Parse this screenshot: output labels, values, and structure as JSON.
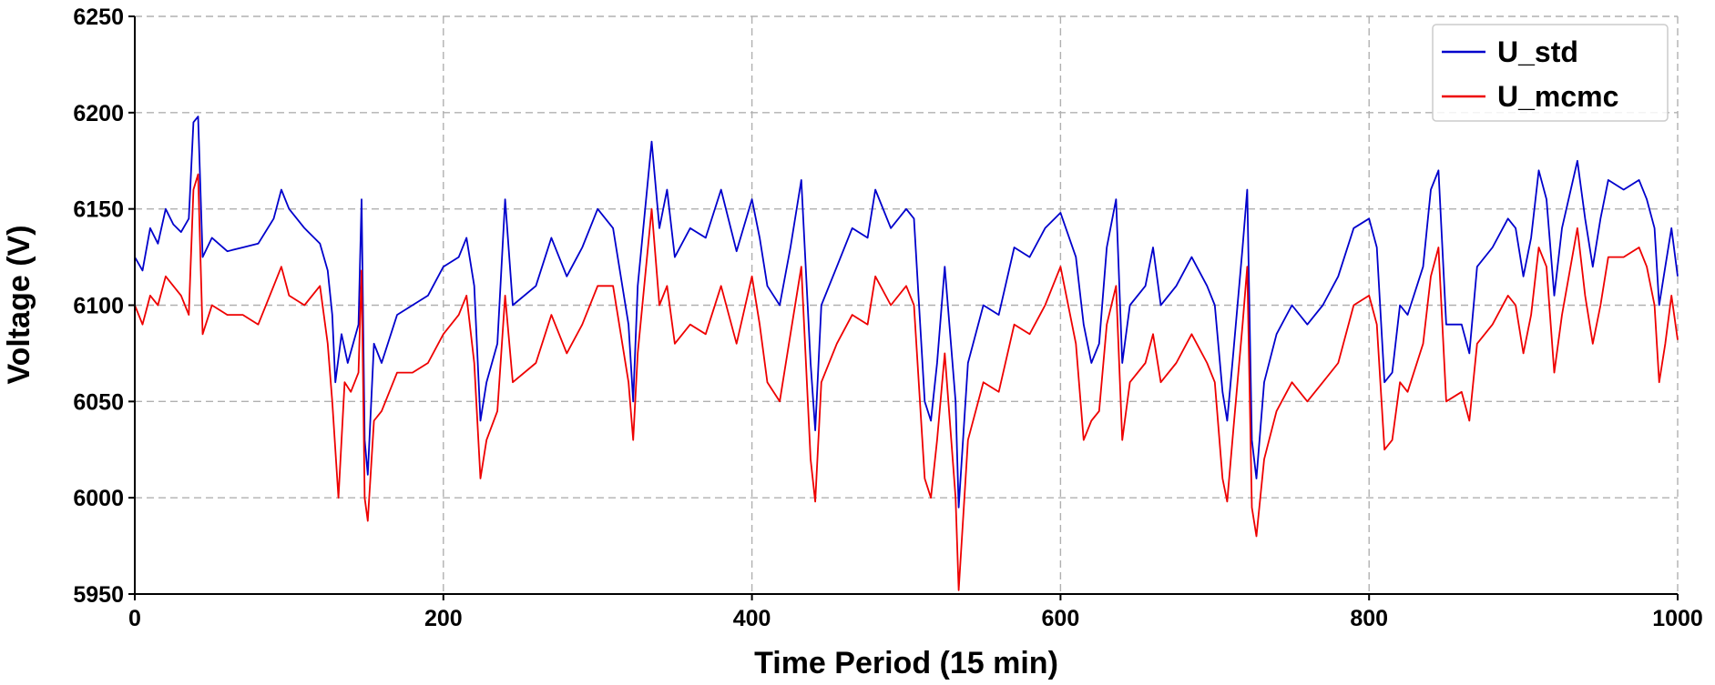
{
  "chart_data": {
    "type": "line",
    "xlabel": "Time Period (15 min)",
    "ylabel": "Voltage (V)",
    "xlim": [
      0,
      1000
    ],
    "ylim": [
      5950,
      6250
    ],
    "x_ticks": [
      0,
      200,
      400,
      600,
      800,
      1000
    ],
    "y_ticks": [
      5950,
      6000,
      6050,
      6100,
      6150,
      6200,
      6250
    ],
    "grid": true,
    "legend_position": "top-right",
    "series": [
      {
        "name": "U_std",
        "color": "#0000cc",
        "points": [
          [
            0,
            6125
          ],
          [
            5,
            6118
          ],
          [
            10,
            6140
          ],
          [
            15,
            6132
          ],
          [
            20,
            6150
          ],
          [
            25,
            6142
          ],
          [
            30,
            6138
          ],
          [
            35,
            6145
          ],
          [
            38,
            6195
          ],
          [
            41,
            6198
          ],
          [
            44,
            6125
          ],
          [
            50,
            6135
          ],
          [
            60,
            6128
          ],
          [
            70,
            6130
          ],
          [
            80,
            6132
          ],
          [
            90,
            6145
          ],
          [
            95,
            6160
          ],
          [
            100,
            6150
          ],
          [
            110,
            6140
          ],
          [
            120,
            6132
          ],
          [
            125,
            6118
          ],
          [
            128,
            6095
          ],
          [
            130,
            6060
          ],
          [
            134,
            6085
          ],
          [
            138,
            6070
          ],
          [
            145,
            6090
          ],
          [
            147,
            6155
          ],
          [
            149,
            6030
          ],
          [
            151,
            6012
          ],
          [
            155,
            6080
          ],
          [
            160,
            6070
          ],
          [
            170,
            6095
          ],
          [
            180,
            6100
          ],
          [
            190,
            6105
          ],
          [
            200,
            6120
          ],
          [
            210,
            6125
          ],
          [
            215,
            6135
          ],
          [
            220,
            6110
          ],
          [
            224,
            6040
          ],
          [
            228,
            6060
          ],
          [
            235,
            6080
          ],
          [
            240,
            6155
          ],
          [
            245,
            6100
          ],
          [
            260,
            6110
          ],
          [
            270,
            6135
          ],
          [
            280,
            6115
          ],
          [
            290,
            6130
          ],
          [
            300,
            6150
          ],
          [
            310,
            6140
          ],
          [
            320,
            6090
          ],
          [
            323,
            6050
          ],
          [
            326,
            6110
          ],
          [
            335,
            6185
          ],
          [
            340,
            6140
          ],
          [
            345,
            6160
          ],
          [
            350,
            6125
          ],
          [
            360,
            6140
          ],
          [
            370,
            6135
          ],
          [
            380,
            6160
          ],
          [
            390,
            6128
          ],
          [
            400,
            6155
          ],
          [
            405,
            6135
          ],
          [
            410,
            6110
          ],
          [
            418,
            6100
          ],
          [
            425,
            6130
          ],
          [
            432,
            6165
          ],
          [
            438,
            6070
          ],
          [
            441,
            6035
          ],
          [
            445,
            6100
          ],
          [
            455,
            6120
          ],
          [
            465,
            6140
          ],
          [
            475,
            6135
          ],
          [
            480,
            6160
          ],
          [
            490,
            6140
          ],
          [
            500,
            6150
          ],
          [
            505,
            6145
          ],
          [
            512,
            6050
          ],
          [
            516,
            6040
          ],
          [
            520,
            6070
          ],
          [
            525,
            6120
          ],
          [
            532,
            6050
          ],
          [
            534,
            5995
          ],
          [
            540,
            6070
          ],
          [
            550,
            6100
          ],
          [
            560,
            6095
          ],
          [
            570,
            6130
          ],
          [
            580,
            6125
          ],
          [
            590,
            6140
          ],
          [
            600,
            6148
          ],
          [
            610,
            6125
          ],
          [
            615,
            6090
          ],
          [
            620,
            6070
          ],
          [
            625,
            6080
          ],
          [
            630,
            6130
          ],
          [
            636,
            6155
          ],
          [
            640,
            6070
          ],
          [
            645,
            6100
          ],
          [
            655,
            6110
          ],
          [
            660,
            6130
          ],
          [
            665,
            6100
          ],
          [
            675,
            6110
          ],
          [
            685,
            6125
          ],
          [
            695,
            6110
          ],
          [
            700,
            6100
          ],
          [
            705,
            6055
          ],
          [
            708,
            6040
          ],
          [
            712,
            6075
          ],
          [
            718,
            6130
          ],
          [
            721,
            6160
          ],
          [
            724,
            6030
          ],
          [
            727,
            6010
          ],
          [
            732,
            6060
          ],
          [
            740,
            6085
          ],
          [
            750,
            6100
          ],
          [
            760,
            6090
          ],
          [
            770,
            6100
          ],
          [
            780,
            6115
          ],
          [
            790,
            6140
          ],
          [
            800,
            6145
          ],
          [
            805,
            6130
          ],
          [
            810,
            6060
          ],
          [
            815,
            6065
          ],
          [
            820,
            6100
          ],
          [
            825,
            6095
          ],
          [
            835,
            6120
          ],
          [
            840,
            6160
          ],
          [
            845,
            6170
          ],
          [
            850,
            6090
          ],
          [
            860,
            6090
          ],
          [
            865,
            6075
          ],
          [
            870,
            6120
          ],
          [
            880,
            6130
          ],
          [
            890,
            6145
          ],
          [
            895,
            6140
          ],
          [
            900,
            6115
          ],
          [
            905,
            6135
          ],
          [
            910,
            6170
          ],
          [
            915,
            6155
          ],
          [
            920,
            6105
          ],
          [
            925,
            6140
          ],
          [
            935,
            6175
          ],
          [
            940,
            6145
          ],
          [
            945,
            6120
          ],
          [
            950,
            6145
          ],
          [
            955,
            6165
          ],
          [
            965,
            6160
          ],
          [
            975,
            6165
          ],
          [
            980,
            6155
          ],
          [
            985,
            6140
          ],
          [
            988,
            6100
          ],
          [
            992,
            6120
          ],
          [
            996,
            6140
          ],
          [
            1000,
            6115
          ]
        ]
      },
      {
        "name": "U_mcmc",
        "color": "#ee0000",
        "points": [
          [
            0,
            6100
          ],
          [
            5,
            6090
          ],
          [
            10,
            6105
          ],
          [
            15,
            6100
          ],
          [
            20,
            6115
          ],
          [
            25,
            6110
          ],
          [
            30,
            6105
          ],
          [
            35,
            6095
          ],
          [
            38,
            6160
          ],
          [
            41,
            6168
          ],
          [
            44,
            6085
          ],
          [
            50,
            6100
          ],
          [
            60,
            6095
          ],
          [
            70,
            6095
          ],
          [
            80,
            6090
          ],
          [
            90,
            6110
          ],
          [
            95,
            6120
          ],
          [
            100,
            6105
          ],
          [
            110,
            6100
          ],
          [
            120,
            6110
          ],
          [
            125,
            6080
          ],
          [
            128,
            6050
          ],
          [
            130,
            6025
          ],
          [
            132,
            6000
          ],
          [
            136,
            6060
          ],
          [
            140,
            6055
          ],
          [
            145,
            6065
          ],
          [
            147,
            6118
          ],
          [
            149,
            6000
          ],
          [
            151,
            5988
          ],
          [
            155,
            6040
          ],
          [
            160,
            6045
          ],
          [
            170,
            6065
          ],
          [
            180,
            6065
          ],
          [
            190,
            6070
          ],
          [
            200,
            6085
          ],
          [
            210,
            6095
          ],
          [
            215,
            6105
          ],
          [
            220,
            6070
          ],
          [
            224,
            6010
          ],
          [
            228,
            6030
          ],
          [
            235,
            6045
          ],
          [
            240,
            6105
          ],
          [
            245,
            6060
          ],
          [
            260,
            6070
          ],
          [
            270,
            6095
          ],
          [
            280,
            6075
          ],
          [
            290,
            6090
          ],
          [
            300,
            6110
          ],
          [
            310,
            6110
          ],
          [
            320,
            6060
          ],
          [
            323,
            6030
          ],
          [
            326,
            6075
          ],
          [
            335,
            6150
          ],
          [
            340,
            6100
          ],
          [
            345,
            6110
          ],
          [
            350,
            6080
          ],
          [
            360,
            6090
          ],
          [
            370,
            6085
          ],
          [
            380,
            6110
          ],
          [
            390,
            6080
          ],
          [
            400,
            6115
          ],
          [
            405,
            6090
          ],
          [
            410,
            6060
          ],
          [
            418,
            6050
          ],
          [
            425,
            6085
          ],
          [
            432,
            6120
          ],
          [
            438,
            6020
          ],
          [
            441,
            5998
          ],
          [
            445,
            6060
          ],
          [
            455,
            6080
          ],
          [
            465,
            6095
          ],
          [
            475,
            6090
          ],
          [
            480,
            6115
          ],
          [
            490,
            6100
          ],
          [
            500,
            6110
          ],
          [
            505,
            6100
          ],
          [
            512,
            6010
          ],
          [
            516,
            6000
          ],
          [
            520,
            6030
          ],
          [
            525,
            6075
          ],
          [
            532,
            6000
          ],
          [
            534,
            5952
          ],
          [
            540,
            6030
          ],
          [
            550,
            6060
          ],
          [
            560,
            6055
          ],
          [
            570,
            6090
          ],
          [
            580,
            6085
          ],
          [
            590,
            6100
          ],
          [
            600,
            6120
          ],
          [
            610,
            6080
          ],
          [
            615,
            6030
          ],
          [
            620,
            6040
          ],
          [
            625,
            6045
          ],
          [
            630,
            6090
          ],
          [
            636,
            6110
          ],
          [
            640,
            6030
          ],
          [
            645,
            6060
          ],
          [
            655,
            6070
          ],
          [
            660,
            6085
          ],
          [
            665,
            6060
          ],
          [
            675,
            6070
          ],
          [
            685,
            6085
          ],
          [
            695,
            6070
          ],
          [
            700,
            6060
          ],
          [
            705,
            6010
          ],
          [
            708,
            5998
          ],
          [
            712,
            6035
          ],
          [
            718,
            6090
          ],
          [
            721,
            6120
          ],
          [
            724,
            5995
          ],
          [
            727,
            5980
          ],
          [
            732,
            6020
          ],
          [
            740,
            6045
          ],
          [
            750,
            6060
          ],
          [
            760,
            6050
          ],
          [
            770,
            6060
          ],
          [
            780,
            6070
          ],
          [
            790,
            6100
          ],
          [
            800,
            6105
          ],
          [
            805,
            6090
          ],
          [
            810,
            6025
          ],
          [
            815,
            6030
          ],
          [
            820,
            6060
          ],
          [
            825,
            6055
          ],
          [
            835,
            6080
          ],
          [
            840,
            6115
          ],
          [
            845,
            6130
          ],
          [
            850,
            6050
          ],
          [
            860,
            6055
          ],
          [
            865,
            6040
          ],
          [
            870,
            6080
          ],
          [
            880,
            6090
          ],
          [
            890,
            6105
          ],
          [
            895,
            6100
          ],
          [
            900,
            6075
          ],
          [
            905,
            6095
          ],
          [
            910,
            6130
          ],
          [
            915,
            6120
          ],
          [
            920,
            6065
          ],
          [
            925,
            6095
          ],
          [
            935,
            6140
          ],
          [
            940,
            6105
          ],
          [
            945,
            6080
          ],
          [
            950,
            6100
          ],
          [
            955,
            6125
          ],
          [
            965,
            6125
          ],
          [
            975,
            6130
          ],
          [
            980,
            6120
          ],
          [
            985,
            6100
          ],
          [
            988,
            6060
          ],
          [
            992,
            6080
          ],
          [
            996,
            6105
          ],
          [
            1000,
            6082
          ]
        ]
      }
    ]
  }
}
